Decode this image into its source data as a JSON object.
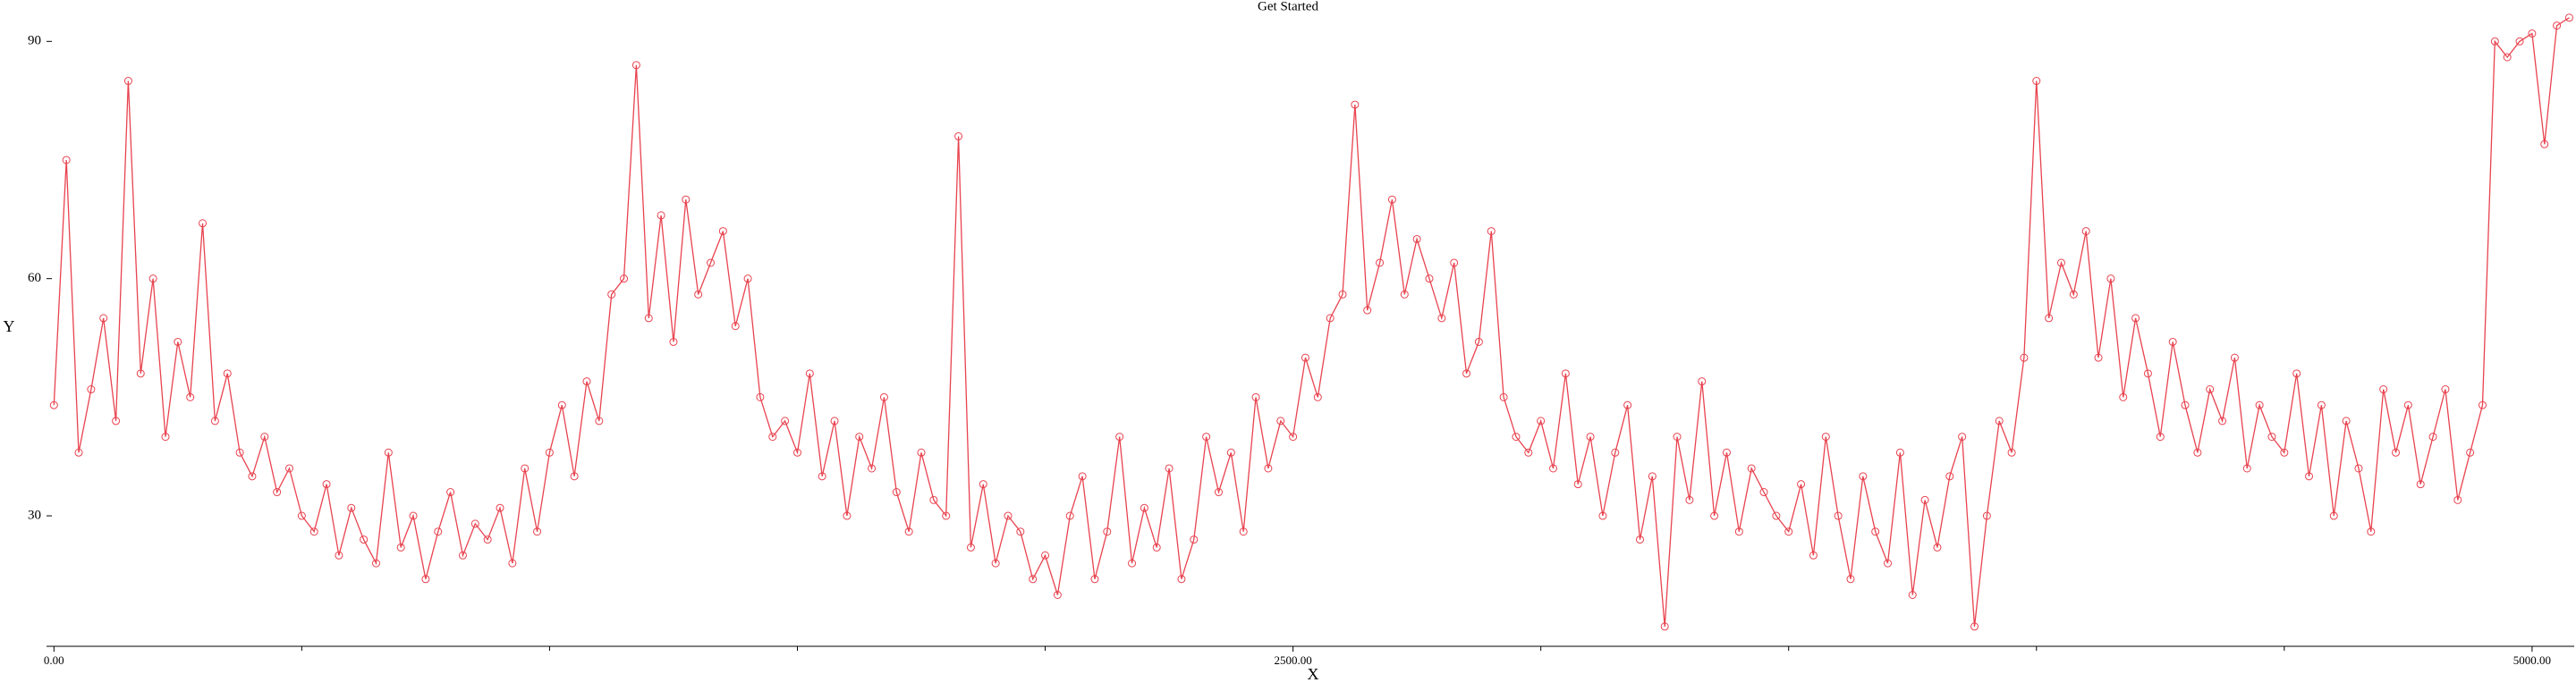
{
  "chart_data": {
    "type": "line",
    "title": "Get Started",
    "x_label": "X",
    "y_label": "Y",
    "x": [
      0,
      25,
      50,
      75,
      100,
      125,
      150,
      175,
      200,
      225,
      250,
      275,
      300,
      325,
      350,
      375,
      400,
      425,
      450,
      475,
      500,
      525,
      550,
      575,
      600,
      625,
      650,
      675,
      700,
      725,
      750,
      775,
      800,
      825,
      850,
      875,
      900,
      925,
      950,
      975,
      1000,
      1025,
      1050,
      1075,
      1100,
      1125,
      1150,
      1175,
      1200,
      1225,
      1250,
      1275,
      1300,
      1325,
      1350,
      1375,
      1400,
      1425,
      1450,
      1475,
      1500,
      1525,
      1550,
      1575,
      1600,
      1625,
      1650,
      1675,
      1700,
      1725,
      1750,
      1775,
      1800,
      1825,
      1850,
      1875,
      1900,
      1925,
      1950,
      1975,
      2000,
      2025,
      2050,
      2075,
      2100,
      2125,
      2150,
      2175,
      2200,
      2225,
      2250,
      2275,
      2300,
      2325,
      2350,
      2375,
      2400,
      2425,
      2450,
      2475,
      2500,
      2525,
      2550,
      2575,
      2600,
      2625,
      2650,
      2675,
      2700,
      2725,
      2750,
      2775,
      2800,
      2825,
      2850,
      2875,
      2900,
      2925,
      2950,
      2975,
      3000,
      3025,
      3050,
      3075,
      3100,
      3125,
      3150,
      3175,
      3200,
      3225,
      3250,
      3275,
      3300,
      3325,
      3350,
      3375,
      3400,
      3425,
      3450,
      3475,
      3500,
      3525,
      3550,
      3575,
      3600,
      3625,
      3650,
      3675,
      3700,
      3725,
      3750,
      3775,
      3800,
      3825,
      3850,
      3875,
      3900,
      3925,
      3950,
      3975,
      4000,
      4025,
      4050,
      4075,
      4100,
      4125,
      4150,
      4175,
      4200,
      4225,
      4250,
      4275,
      4300,
      4325,
      4350,
      4375,
      4400,
      4425,
      4450,
      4475,
      4500,
      4525,
      4550,
      4575,
      4600,
      4625,
      4650,
      4675,
      4700,
      4725,
      4750,
      4775,
      4800,
      4825,
      4850,
      4875,
      4900,
      4925,
      4950,
      4975,
      5000,
      5025,
      5050,
      5075
    ],
    "series": [
      {
        "color": "#e8434f",
        "values": [
          44,
          75,
          38,
          46,
          55,
          42,
          85,
          48,
          60,
          40,
          52,
          45,
          67,
          42,
          48,
          38,
          35,
          40,
          33,
          36,
          30,
          28,
          34,
          25,
          31,
          27,
          24,
          38,
          26,
          30,
          22,
          28,
          33,
          25,
          29,
          27,
          31,
          24,
          36,
          28,
          38,
          44,
          35,
          47,
          42,
          58,
          60,
          87,
          55,
          68,
          52,
          70,
          58,
          62,
          66,
          54,
          60,
          45,
          40,
          42,
          38,
          48,
          35,
          42,
          30,
          40,
          36,
          45,
          33,
          28,
          38,
          32,
          30,
          78,
          26,
          34,
          24,
          30,
          28,
          22,
          25,
          20,
          30,
          35,
          22,
          28,
          40,
          24,
          31,
          26,
          36,
          22,
          27,
          40,
          33,
          38,
          28,
          45,
          36,
          42,
          40,
          50,
          45,
          55,
          58,
          82,
          56,
          62,
          70,
          58,
          65,
          60,
          55,
          62,
          48,
          52,
          66,
          45,
          40,
          38,
          42,
          36,
          48,
          34,
          40,
          30,
          38,
          44,
          27,
          35,
          16,
          40,
          32,
          47,
          30,
          38,
          28,
          36,
          33,
          30,
          28,
          34,
          25,
          40,
          30,
          22,
          35,
          28,
          24,
          38,
          20,
          32,
          26,
          35,
          40,
          16,
          30,
          42,
          38,
          50,
          85,
          55,
          62,
          58,
          66,
          50,
          60,
          45,
          55,
          48,
          40,
          52,
          44,
          38,
          46,
          42,
          50,
          36,
          44,
          40,
          38,
          48,
          35,
          44,
          30,
          42,
          36,
          28,
          46,
          38,
          44,
          34,
          40,
          46,
          32,
          38,
          44,
          90,
          88,
          90,
          91,
          77,
          92,
          93
        ]
      }
    ],
    "xlim": [
      -15,
      5085
    ],
    "ylim": [
      13.5,
      93.2
    ],
    "xticks": [
      {
        "value": 0,
        "label": "0.00"
      },
      {
        "value": 2500,
        "label": "2500.00"
      },
      {
        "value": 5000,
        "label": "5000.00"
      }
    ],
    "xminorticks": [
      500,
      1000,
      1500,
      2000,
      3000,
      3500,
      4000,
      4500
    ],
    "yticks": [
      30,
      60,
      90
    ],
    "grid": false
  }
}
